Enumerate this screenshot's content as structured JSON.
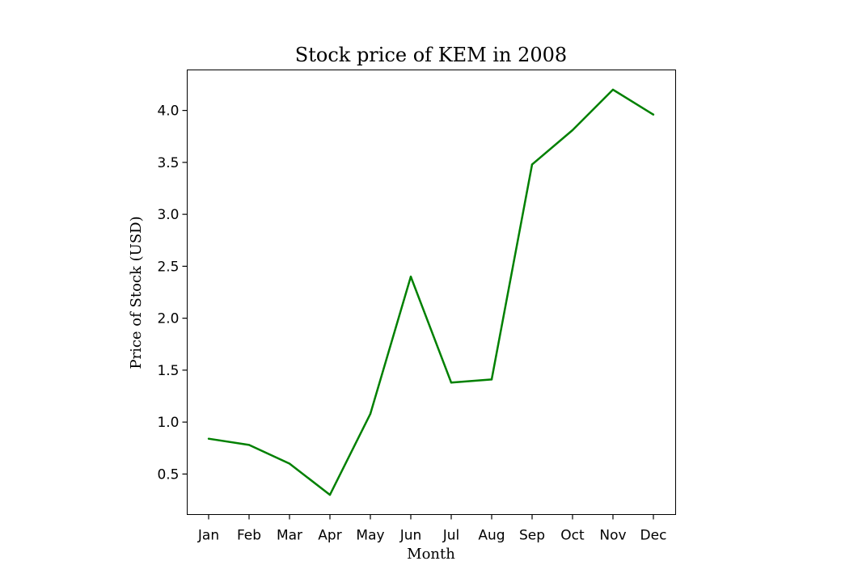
{
  "chart_data": {
    "type": "line",
    "title": "Stock price of KEM in 2008",
    "xlabel": "Month",
    "ylabel": "Price of Stock (USD)",
    "categories": [
      "Jan",
      "Feb",
      "Mar",
      "Apr",
      "May",
      "Jun",
      "Jul",
      "Aug",
      "Sep",
      "Oct",
      "Nov",
      "Dec"
    ],
    "series": [
      {
        "values": [
          0.84,
          0.78,
          0.6,
          0.3,
          1.08,
          2.4,
          1.38,
          1.41,
          3.48,
          3.81,
          4.2,
          3.96
        ],
        "color": "#008000"
      }
    ],
    "yticks": [
      0.5,
      1.0,
      1.5,
      2.0,
      2.5,
      3.0,
      3.5,
      4.0
    ],
    "ytick_labels": [
      "0.5",
      "1.0",
      "1.5",
      "2.0",
      "2.5",
      "3.0",
      "3.5",
      "4.0"
    ],
    "ylim": [
      0.11,
      4.39
    ],
    "grid": false,
    "legend": "none"
  }
}
